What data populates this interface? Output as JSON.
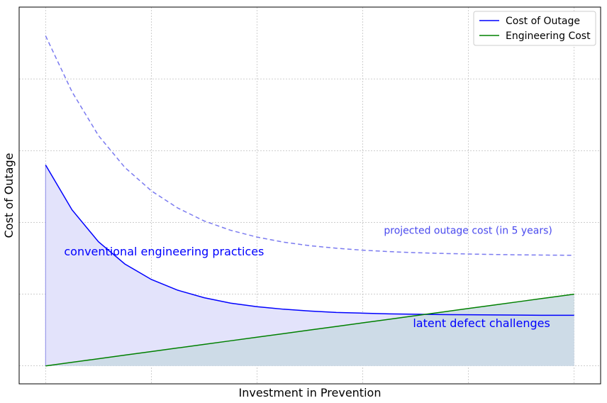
{
  "chart_data": {
    "type": "line",
    "xlabel": "Investment in Prevention",
    "ylabel": "Cost of Outage",
    "xlim": [
      0,
      1
    ],
    "ylim": [
      -0.05,
      1.0
    ],
    "grid": true,
    "legend_position": "top-right",
    "x": [
      0,
      0.05,
      0.1,
      0.15,
      0.2,
      0.25,
      0.3,
      0.35,
      0.4,
      0.45,
      0.5,
      0.55,
      0.6,
      0.65,
      0.7,
      0.75,
      0.8,
      0.85,
      0.9,
      0.95,
      1.0
    ],
    "series": [
      {
        "name": "Cost of Outage",
        "color": "#0000ff",
        "style": "solid",
        "fill": "#e3e3fb",
        "values": [
          0.56,
          0.435,
          0.346,
          0.284,
          0.241,
          0.211,
          0.19,
          0.175,
          0.165,
          0.158,
          0.153,
          0.149,
          0.147,
          0.145,
          0.144,
          0.143,
          0.1425,
          0.142,
          0.1415,
          0.141,
          0.141
        ]
      },
      {
        "name": "Engineering Cost",
        "color": "#008000",
        "style": "solid",
        "fill": "#c9d9e3",
        "values": [
          0.0,
          0.01,
          0.02,
          0.03,
          0.04,
          0.05,
          0.06,
          0.07,
          0.08,
          0.09,
          0.1,
          0.11,
          0.12,
          0.13,
          0.14,
          0.15,
          0.16,
          0.17,
          0.18,
          0.19,
          0.2
        ]
      },
      {
        "name": "",
        "color": "#7b7bf0",
        "style": "dashed",
        "values": [
          0.92,
          0.764,
          0.642,
          0.553,
          0.488,
          0.44,
          0.404,
          0.378,
          0.359,
          0.345,
          0.335,
          0.328,
          0.3225,
          0.3185,
          0.3155,
          0.3135,
          0.3118,
          0.3105,
          0.3095,
          0.3088,
          0.3083
        ]
      }
    ],
    "annotations": [
      {
        "text": "conventional engineering practices",
        "x": 0.035,
        "y": 0.308,
        "color": "#0000ff",
        "size": 16
      },
      {
        "text": "projected outage cost (in 5 years)",
        "x": 0.64,
        "y": 0.368,
        "color": "#4a4aee",
        "size": 14
      },
      {
        "text": "latent defect challenges",
        "x": 0.695,
        "y": 0.108,
        "color": "#0000ff",
        "size": 16
      }
    ]
  }
}
